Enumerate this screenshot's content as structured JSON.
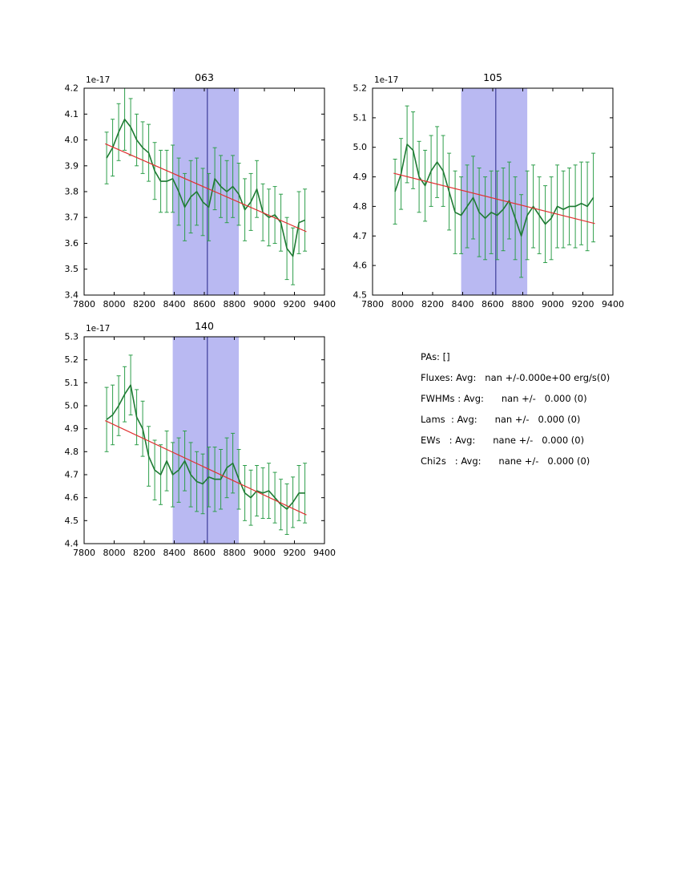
{
  "figure": {
    "background": "#ffffff"
  },
  "colors": {
    "series": "#1e7a33",
    "error": "#2e9e4b",
    "fit": "#e03131",
    "band": "#b9b9f2",
    "vline": "#3d3d99",
    "axis": "#000000",
    "text": "#000000"
  },
  "stats_panel": {
    "lines": [
      "PAs: []",
      "Fluxes: Avg:   nan +/-0.000e+00 erg/s(0)",
      "FWHMs : Avg:      nan +/-   0.000 (0)",
      "Lams  : Avg:      nan +/-   0.000 (0)",
      "EWs   : Avg:      nane +/-   0.000 (0)",
      "Chi2s   : Avg:      nane +/-   0.000 (0)"
    ]
  },
  "chart_data": [
    {
      "type": "line",
      "title": "063",
      "offset_label": "1e-17",
      "xlabel": "",
      "ylabel": "",
      "xlim": [
        7800,
        9400
      ],
      "ylim": [
        3.4,
        4.2
      ],
      "xticks": [
        "7800",
        "8000",
        "8200",
        "8400",
        "8600",
        "8800",
        "9000",
        "9200",
        "9400"
      ],
      "yticks": [
        "3.4",
        "3.5",
        "3.6",
        "3.7",
        "3.8",
        "3.9",
        "4.0",
        "4.1",
        "4.2"
      ],
      "band": [
        8390,
        8830
      ],
      "vline": 8620,
      "x": [
        7950,
        7990,
        8030,
        8070,
        8110,
        8150,
        8190,
        8230,
        8270,
        8310,
        8350,
        8390,
        8430,
        8470,
        8510,
        8550,
        8590,
        8630,
        8670,
        8710,
        8750,
        8790,
        8830,
        8870,
        8910,
        8950,
        8990,
        9030,
        9070,
        9110,
        9150,
        9190,
        9230,
        9270
      ],
      "y": [
        3.93,
        3.97,
        4.03,
        4.08,
        4.05,
        4.0,
        3.97,
        3.95,
        3.88,
        3.84,
        3.84,
        3.85,
        3.8,
        3.74,
        3.78,
        3.8,
        3.76,
        3.74,
        3.85,
        3.82,
        3.8,
        3.82,
        3.79,
        3.73,
        3.76,
        3.81,
        3.72,
        3.7,
        3.71,
        3.68,
        3.58,
        3.55,
        3.68,
        3.69
      ],
      "yerr": [
        0.1,
        0.11,
        0.11,
        0.12,
        0.11,
        0.1,
        0.1,
        0.11,
        0.11,
        0.12,
        0.12,
        0.13,
        0.13,
        0.13,
        0.14,
        0.13,
        0.13,
        0.13,
        0.12,
        0.12,
        0.12,
        0.12,
        0.12,
        0.12,
        0.11,
        0.11,
        0.11,
        0.11,
        0.11,
        0.11,
        0.12,
        0.11,
        0.12,
        0.12
      ],
      "fit_line": {
        "x": [
          7940,
          9280
        ],
        "y": [
          3.985,
          3.645
        ]
      }
    },
    {
      "type": "line",
      "title": "105",
      "offset_label": "1e-17",
      "xlabel": "",
      "ylabel": "",
      "xlim": [
        7800,
        9400
      ],
      "ylim": [
        4.5,
        5.2
      ],
      "xticks": [
        "7800",
        "8000",
        "8200",
        "8400",
        "8600",
        "8800",
        "9000",
        "9200",
        "9400"
      ],
      "yticks": [
        "4.5",
        "4.6",
        "4.7",
        "4.8",
        "4.9",
        "5.0",
        "5.1",
        "5.2"
      ],
      "band": [
        8390,
        8830
      ],
      "vline": 8620,
      "x": [
        7950,
        7990,
        8030,
        8070,
        8110,
        8150,
        8190,
        8230,
        8270,
        8310,
        8350,
        8390,
        8430,
        8470,
        8510,
        8550,
        8590,
        8630,
        8670,
        8710,
        8750,
        8790,
        8830,
        8870,
        8910,
        8950,
        8990,
        9030,
        9070,
        9110,
        9150,
        9190,
        9230,
        9270
      ],
      "y": [
        4.85,
        4.91,
        5.01,
        4.99,
        4.9,
        4.87,
        4.92,
        4.95,
        4.92,
        4.85,
        4.78,
        4.77,
        4.8,
        4.83,
        4.78,
        4.76,
        4.78,
        4.77,
        4.79,
        4.82,
        4.76,
        4.7,
        4.77,
        4.8,
        4.77,
        4.74,
        4.76,
        4.8,
        4.79,
        4.8,
        4.8,
        4.81,
        4.8,
        4.83
      ],
      "yerr": [
        0.11,
        0.12,
        0.13,
        0.13,
        0.12,
        0.12,
        0.12,
        0.12,
        0.12,
        0.13,
        0.14,
        0.13,
        0.14,
        0.14,
        0.15,
        0.14,
        0.14,
        0.15,
        0.14,
        0.13,
        0.14,
        0.14,
        0.15,
        0.14,
        0.13,
        0.13,
        0.14,
        0.14,
        0.13,
        0.13,
        0.14,
        0.14,
        0.15,
        0.15
      ],
      "fit_line": {
        "x": [
          7940,
          9280
        ],
        "y": [
          4.912,
          4.742
        ]
      }
    },
    {
      "type": "line",
      "title": "140",
      "offset_label": "1e-17",
      "xlabel": "",
      "ylabel": "",
      "xlim": [
        7800,
        9400
      ],
      "ylim": [
        4.4,
        5.3
      ],
      "xticks": [
        "7800",
        "8000",
        "8200",
        "8400",
        "8600",
        "8800",
        "9000",
        "9200",
        "9400"
      ],
      "yticks": [
        "4.4",
        "4.5",
        "4.6",
        "4.7",
        "4.8",
        "4.9",
        "5.0",
        "5.1",
        "5.2",
        "5.3"
      ],
      "band": [
        8390,
        8830
      ],
      "vline": 8620,
      "x": [
        7950,
        7990,
        8030,
        8070,
        8110,
        8150,
        8190,
        8230,
        8270,
        8310,
        8350,
        8390,
        8430,
        8470,
        8510,
        8550,
        8590,
        8630,
        8670,
        8710,
        8750,
        8790,
        8830,
        8870,
        8910,
        8950,
        8990,
        9030,
        9070,
        9110,
        9150,
        9190,
        9230,
        9270
      ],
      "y": [
        4.94,
        4.96,
        5.0,
        5.05,
        5.09,
        4.95,
        4.9,
        4.78,
        4.72,
        4.7,
        4.76,
        4.7,
        4.72,
        4.76,
        4.7,
        4.67,
        4.66,
        4.69,
        4.68,
        4.68,
        4.73,
        4.75,
        4.68,
        4.62,
        4.6,
        4.63,
        4.62,
        4.63,
        4.6,
        4.57,
        4.55,
        4.58,
        4.62,
        4.62
      ],
      "yerr": [
        0.14,
        0.13,
        0.13,
        0.12,
        0.13,
        0.12,
        0.12,
        0.13,
        0.13,
        0.13,
        0.13,
        0.14,
        0.14,
        0.13,
        0.14,
        0.13,
        0.13,
        0.13,
        0.14,
        0.13,
        0.13,
        0.13,
        0.13,
        0.12,
        0.12,
        0.11,
        0.11,
        0.12,
        0.11,
        0.11,
        0.11,
        0.11,
        0.12,
        0.13
      ],
      "fit_line": {
        "x": [
          7940,
          9280
        ],
        "y": [
          4.935,
          4.525
        ]
      }
    }
  ]
}
